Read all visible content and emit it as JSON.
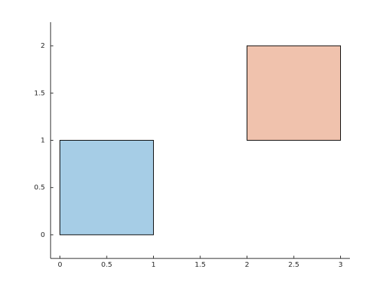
{
  "chart_data": {
    "type": "rectangle",
    "rectangles": [
      {
        "x": 0,
        "y": 0,
        "width": 1,
        "height": 1,
        "color": "#a6cde6"
      },
      {
        "x": 2,
        "y": 1,
        "width": 1,
        "height": 1,
        "color": "#f0c2ad"
      }
    ],
    "xlim": [
      -0.1,
      3.1
    ],
    "ylim": [
      -0.25,
      2.25
    ],
    "xticks": [
      0,
      0.5,
      1,
      1.5,
      2,
      2.5,
      3
    ],
    "yticks": [
      0,
      0.5,
      1,
      1.5,
      2
    ],
    "grid": false
  }
}
